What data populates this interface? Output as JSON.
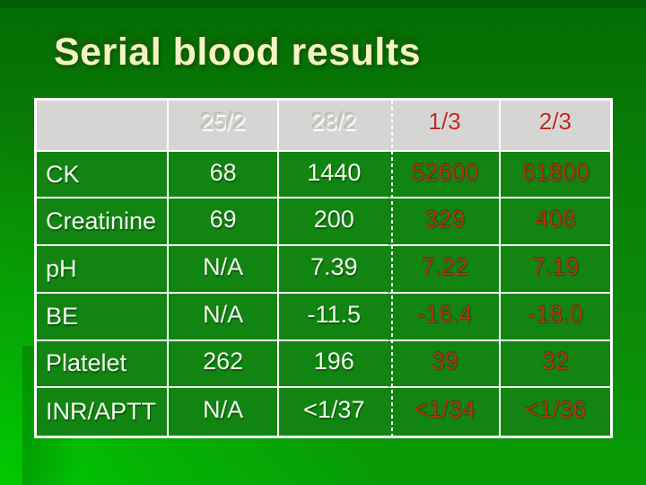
{
  "title": "Serial blood results",
  "table": {
    "header": [
      "",
      "25/2",
      "28/2",
      "1/3",
      "2/3"
    ],
    "rows": [
      [
        "CK",
        "68",
        "1440",
        "52600",
        "61800"
      ],
      [
        "Creatinine",
        "69",
        "200",
        "329",
        "408"
      ],
      [
        "pH",
        "N/A",
        "7.39",
        "7.22",
        "7.19"
      ],
      [
        "BE",
        "N/A",
        "-11.5",
        "-16.4",
        "-18.0"
      ],
      [
        "Platelet",
        "262",
        "196",
        "39",
        "32"
      ],
      [
        "INR/APTT",
        "N/A",
        "<1/37",
        "<1/34",
        "<1/36"
      ]
    ]
  },
  "colors": {
    "background_green_dark": "#056f05",
    "background_green_bright": "#00c000",
    "cell_green": "#128412",
    "header_gray": "#d5d5d3",
    "grid_line": "#ffffff",
    "title_cream": "#f4f3c4",
    "normal_value_text": "#f5f9f1",
    "abnormal_value_text": "#ac3517",
    "header_date_text": "#cdd2ca",
    "header_abnormal_text": "#c1271e"
  }
}
